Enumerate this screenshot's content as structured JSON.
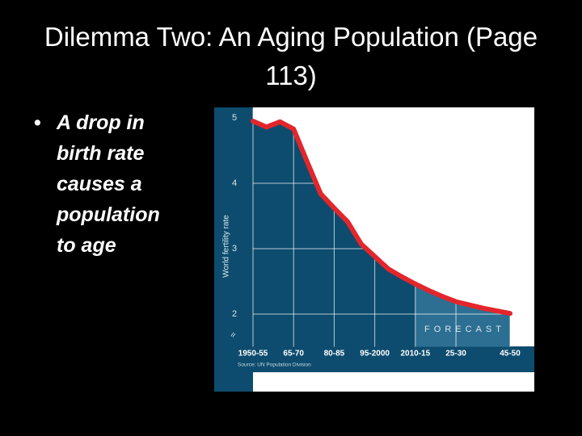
{
  "slide": {
    "title": "Dilemma Two: An Aging Population (Page 113)",
    "bullets": [
      "A drop in birth rate causes a population to age"
    ]
  },
  "chart_data": {
    "type": "line",
    "ylabel": "World fertility rate",
    "categories": [
      "1950-55",
      null,
      null,
      "65-70",
      null,
      null,
      "80-85",
      null,
      null,
      "95-2000",
      null,
      null,
      "2010-15",
      null,
      null,
      "25-30",
      null,
      null,
      null,
      "45-50"
    ],
    "values": [
      4.95,
      4.86,
      4.94,
      4.83,
      4.33,
      3.84,
      3.62,
      3.41,
      3.07,
      2.88,
      2.69,
      2.57,
      2.46,
      2.36,
      2.27,
      2.19,
      2.14,
      2.09,
      2.05,
      2.01
    ],
    "color": "#e3262b",
    "ylim": [
      1.5,
      5.15
    ],
    "yticks": [
      2,
      3,
      4,
      5
    ],
    "grid": true,
    "forecast_label": "FORECAST",
    "forecast_start": "2010-15",
    "source": "Source: UN Population Division"
  }
}
